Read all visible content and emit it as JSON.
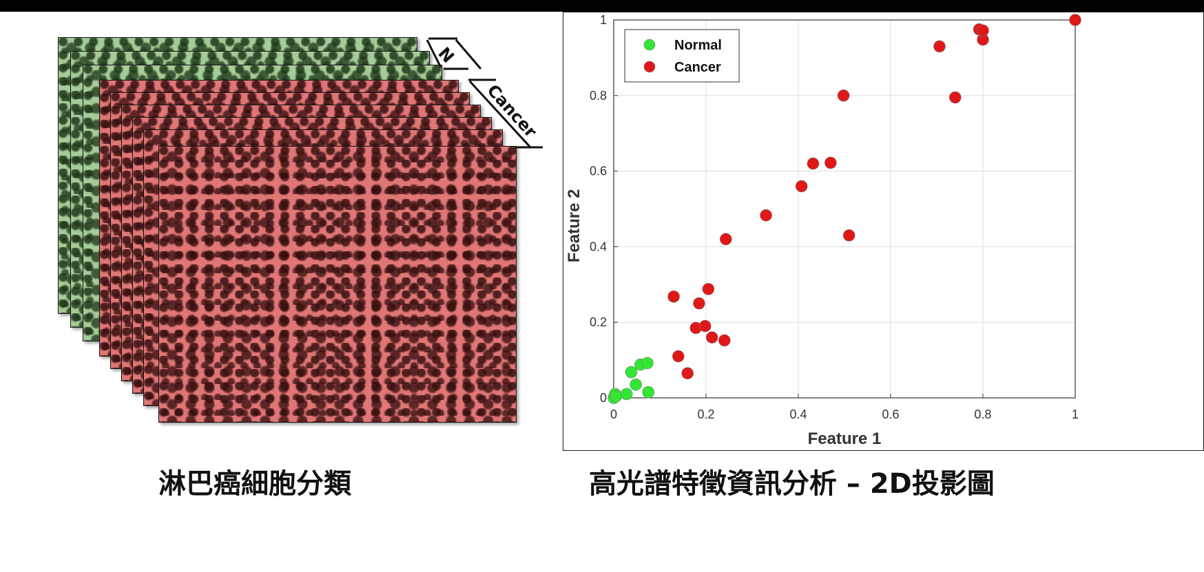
{
  "left_panel": {
    "label_normal": "N",
    "label_cancer": "Cancer",
    "caption": "淋巴癌細胞分類"
  },
  "chart_caption": "高光譜特徵資訊分析 – 2D投影圖",
  "colors": {
    "normal": "#33e633",
    "cancer": "#e01818",
    "green_tissue": "#a5cc98",
    "red_tissue": "#e07676"
  },
  "chart_data": {
    "type": "scatter",
    "xlabel": "Feature 1",
    "ylabel": "Feature 2",
    "xlim": [
      0,
      1
    ],
    "ylim": [
      0,
      1
    ],
    "xticks": [
      "0",
      "0.2",
      "0.4",
      "0.6",
      "0.8",
      "1"
    ],
    "yticks": [
      "0",
      "0.2",
      "0.4",
      "0.6",
      "0.8",
      "1"
    ],
    "grid": true,
    "legend_position": "top-left",
    "series": [
      {
        "name": "Normal",
        "color": "#33e633",
        "points": [
          [
            0.0,
            0.0
          ],
          [
            0.003,
            0.01
          ],
          [
            0.005,
            0.004
          ],
          [
            0.028,
            0.01
          ],
          [
            0.038,
            0.068
          ],
          [
            0.048,
            0.035
          ],
          [
            0.058,
            0.088
          ],
          [
            0.073,
            0.092
          ],
          [
            0.075,
            0.015
          ]
        ]
      },
      {
        "name": "Cancer",
        "color": "#e01818",
        "points": [
          [
            0.13,
            0.268
          ],
          [
            0.14,
            0.11
          ],
          [
            0.16,
            0.065
          ],
          [
            0.178,
            0.185
          ],
          [
            0.185,
            0.25
          ],
          [
            0.198,
            0.19
          ],
          [
            0.205,
            0.288
          ],
          [
            0.213,
            0.16
          ],
          [
            0.24,
            0.152
          ],
          [
            0.243,
            0.42
          ],
          [
            0.33,
            0.483
          ],
          [
            0.407,
            0.56
          ],
          [
            0.432,
            0.62
          ],
          [
            0.47,
            0.622
          ],
          [
            0.498,
            0.8
          ],
          [
            0.51,
            0.43
          ],
          [
            0.706,
            0.93
          ],
          [
            0.74,
            0.795
          ],
          [
            0.792,
            0.975
          ],
          [
            0.8,
            0.948
          ],
          [
            0.8,
            0.972
          ],
          [
            1.0,
            1.0
          ]
        ]
      }
    ]
  }
}
